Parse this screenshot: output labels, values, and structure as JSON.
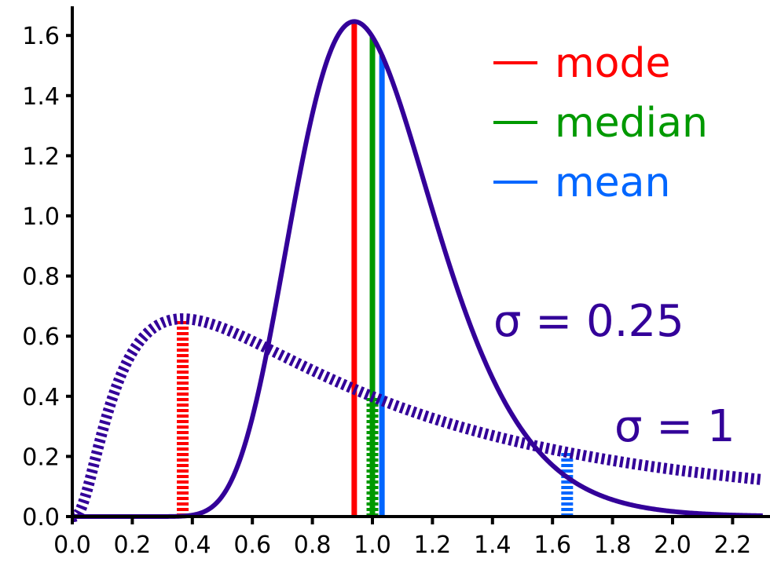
{
  "chart_data": {
    "type": "line",
    "title": "",
    "xlabel": "",
    "ylabel": "",
    "xlim": [
      0.0,
      2.3
    ],
    "ylim": [
      0.0,
      1.7
    ],
    "grid": false,
    "x_ticks": [
      "0.0",
      "0.2",
      "0.4",
      "0.6",
      "0.8",
      "1.0",
      "1.2",
      "1.4",
      "1.6",
      "1.8",
      "2.0",
      "2.2"
    ],
    "y_ticks": [
      "0.0",
      "0.2",
      "0.4",
      "0.6",
      "0.8",
      "1.0",
      "1.2",
      "1.4",
      "1.6"
    ],
    "series": [
      {
        "name": "σ = 0.25",
        "distribution": "lognormal",
        "mu": 0,
        "sigma": 0.25,
        "style": "solid",
        "color": "#330099",
        "mode": 0.94,
        "median": 1.0,
        "mean": 1.03,
        "peak": 1.65
      },
      {
        "name": "σ = 1",
        "distribution": "lognormal",
        "mu": 0,
        "sigma": 1,
        "style": "dashed",
        "color": "#330099",
        "mode": 0.37,
        "median": 1.0,
        "mean": 1.65,
        "peak": 0.66
      }
    ],
    "legend": [
      {
        "label": "mode",
        "color": "#ff0000"
      },
      {
        "label": "median",
        "color": "#009900"
      },
      {
        "label": "mean",
        "color": "#0066ff"
      }
    ],
    "legend_position": "upper right",
    "annotations": [
      {
        "text": "σ = 0.25",
        "x": 1.4,
        "y": 0.63
      },
      {
        "text": "σ = 1",
        "x": 1.8,
        "y": 0.23
      }
    ]
  }
}
